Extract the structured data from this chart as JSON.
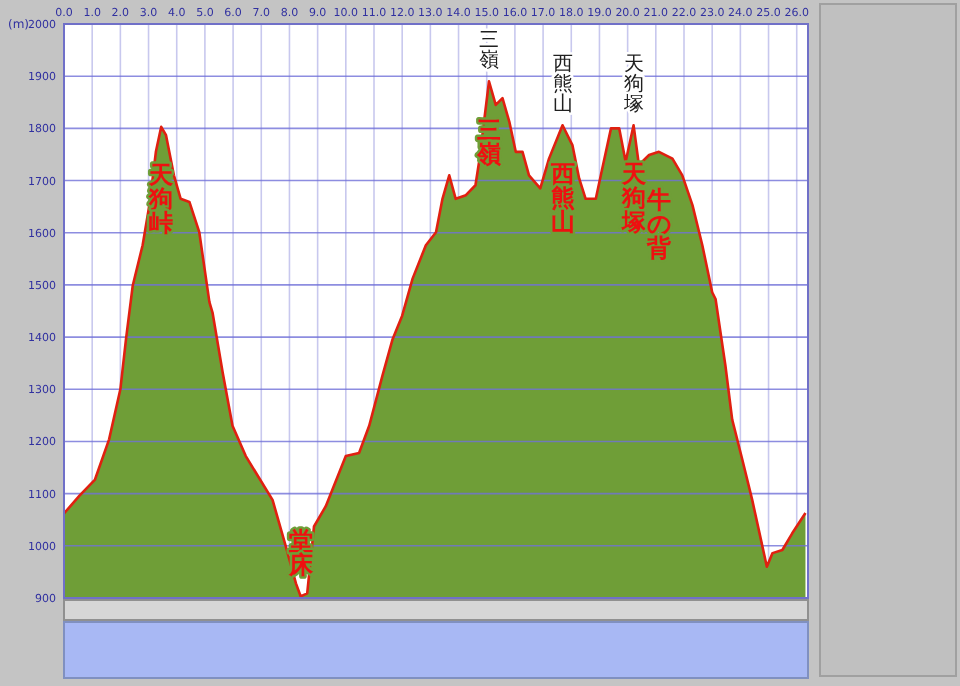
{
  "chart_data": {
    "type": "area",
    "ylabel": "(m)",
    "color": "#6f9e37",
    "grid": true,
    "x": [
      0,
      0.55,
      1.1,
      1.6,
      2.0,
      2.2,
      2.44,
      2.79,
      3.03,
      3.26,
      3.45,
      3.62,
      3.9,
      4.14,
      4.45,
      4.8,
      5.16,
      5.27,
      5.63,
      5.98,
      6.45,
      6.81,
      7.4,
      7.87,
      8.23,
      8.4,
      8.63,
      8.87,
      9.29,
      10.0,
      10.47,
      10.83,
      11.3,
      11.66,
      12.0,
      12.37,
      12.84,
      13.2,
      13.43,
      13.67,
      13.9,
      14.26,
      14.6,
      14.73,
      15.08,
      15.32,
      15.56,
      15.8,
      16.03,
      16.27,
      16.5,
      16.9,
      17.21,
      17.69,
      18.04,
      18.28,
      18.51,
      18.87,
      19.1,
      19.41,
      19.7,
      19.93,
      20.21,
      20.4,
      20.76,
      21.11,
      21.59,
      21.94,
      22.3,
      22.65,
      23.0,
      23.12,
      23.47,
      23.71,
      24.07,
      24.42,
      24.94,
      25.14,
      25.49,
      25.84,
      26.31
    ],
    "values": [
      1062,
      1096,
      1127,
      1204,
      1300,
      1396,
      1499,
      1576,
      1653,
      1755,
      1803,
      1787,
      1710,
      1665,
      1659,
      1601,
      1467,
      1447,
      1332,
      1230,
      1172,
      1140,
      1088,
      999,
      928,
      903,
      909,
      1037,
      1076,
      1172,
      1178,
      1230,
      1326,
      1396,
      1441,
      1512,
      1576,
      1601,
      1665,
      1710,
      1665,
      1672,
      1691,
      1736,
      1890,
      1845,
      1858,
      1813,
      1755,
      1755,
      1710,
      1685,
      1742,
      1806,
      1768,
      1704,
      1665,
      1665,
      1723,
      1800,
      1800,
      1736,
      1806,
      1730,
      1749,
      1755,
      1742,
      1710,
      1653,
      1576,
      1486,
      1473,
      1345,
      1242,
      1165,
      1088,
      960,
      986,
      992,
      1024,
      1063
    ],
    "xlim": [
      0,
      26.4
    ],
    "ylim": [
      900,
      2000
    ],
    "xticks": [
      {
        "value": 0,
        "label": "0.0"
      },
      {
        "value": 1,
        "label": "1.0"
      },
      {
        "value": 2,
        "label": "2.0"
      },
      {
        "value": 3,
        "label": "3.0"
      },
      {
        "value": 4,
        "label": "4.0"
      },
      {
        "value": 5,
        "label": "5.0"
      },
      {
        "value": 6,
        "label": "6.0"
      },
      {
        "value": 7,
        "label": "7.0"
      },
      {
        "value": 8,
        "label": "8.0"
      },
      {
        "value": 9,
        "label": "9.0"
      },
      {
        "value": 10,
        "label": "10.0"
      },
      {
        "value": 11,
        "label": "11.0"
      },
      {
        "value": 12,
        "label": "12.0"
      },
      {
        "value": 13,
        "label": "13.0"
      },
      {
        "value": 14,
        "label": "14.0"
      },
      {
        "value": 15,
        "label": "15.0"
      },
      {
        "value": 16,
        "label": "16.0"
      },
      {
        "value": 17,
        "label": "17.0"
      },
      {
        "value": 18,
        "label": "18.0"
      },
      {
        "value": 19,
        "label": "19.0"
      },
      {
        "value": 20,
        "label": "20.0"
      },
      {
        "value": 21,
        "label": "21.0"
      },
      {
        "value": 22,
        "label": "22.0"
      },
      {
        "value": 23,
        "label": "23.0"
      },
      {
        "value": 24,
        "label": "24.0"
      },
      {
        "value": 25,
        "label": "25.0"
      },
      {
        "value": 26,
        "label": "26.0"
      }
    ],
    "yticks": [
      900,
      1000,
      1100,
      1200,
      1300,
      1400,
      1500,
      1600,
      1700,
      1800,
      1900,
      2000
    ],
    "annotations": [
      {
        "text": "天狗峠",
        "x": 3.45,
        "y": 1803
      },
      {
        "text": "堂床",
        "x": 8.4,
        "y": 903
      },
      {
        "text": "三嶺",
        "x": 15.08,
        "y": 1890
      },
      {
        "text": "西熊山",
        "x": 17.69,
        "y": 1806
      },
      {
        "text": "天狗塚",
        "x": 20.21,
        "y": 1806
      },
      {
        "text": "牛の背",
        "x": 21.11,
        "y": 1755
      },
      {
        "text": "三嶺",
        "x": 15.08,
        "y": 1890
      },
      {
        "text": "西熊山",
        "x": 17.69,
        "y": 1806
      },
      {
        "text": "天狗塚",
        "x": 20.21,
        "y": 1806
      }
    ]
  }
}
